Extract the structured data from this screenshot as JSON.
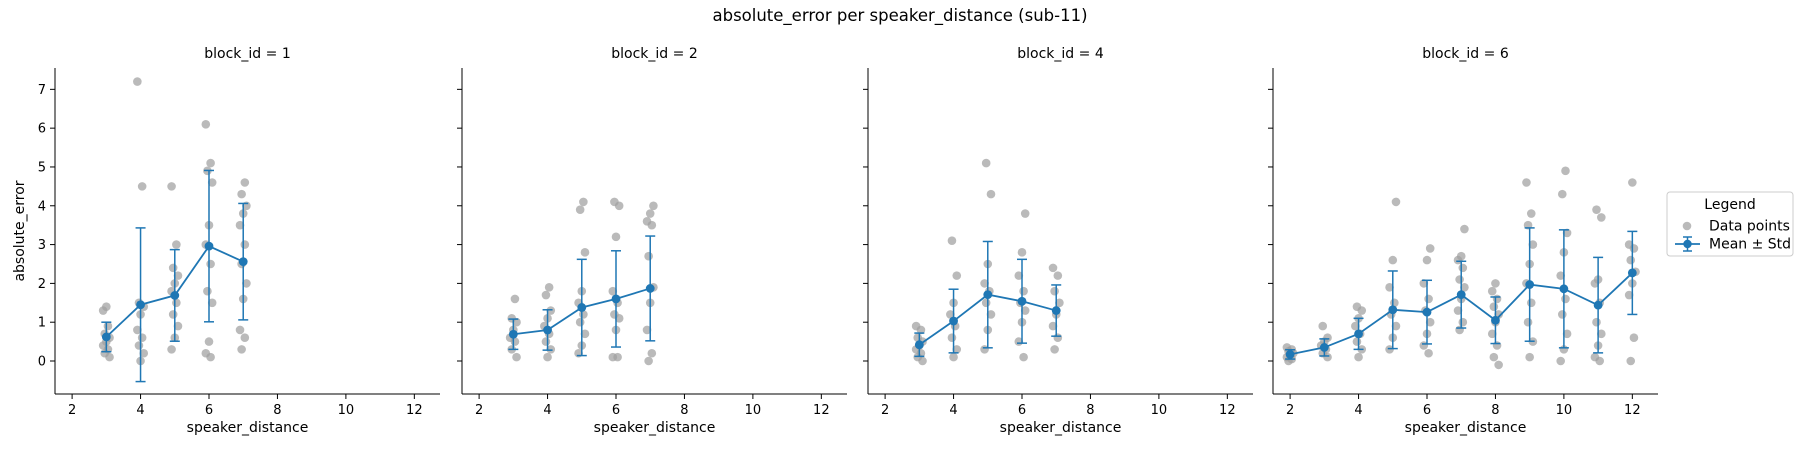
{
  "chart_data": {
    "type": "scatter",
    "title": "absolute_error per speaker_distance (sub-11)",
    "xlabel": "speaker_distance",
    "ylabel": "absolute_error",
    "xlim": [
      1.5,
      12.75
    ],
    "ylim": [
      -0.85,
      7.55
    ],
    "xticks": [
      2,
      4,
      6,
      8,
      10,
      12
    ],
    "yticks": [
      0,
      1,
      2,
      3,
      4,
      5,
      6,
      7
    ],
    "colors": {
      "points": "#a0a0a0",
      "mean": "#1f77b4"
    },
    "legend": {
      "title": "Legend",
      "entries": [
        "Data points",
        "Mean ± Std"
      ],
      "placement": "outside-right"
    },
    "panels": [
      {
        "title": "block_id = 1",
        "points": {
          "3": [
            0.1,
            0.2,
            0.3,
            0.4,
            0.5,
            0.6,
            0.7,
            0.9,
            1.3,
            1.4
          ],
          "4": [
            0.0,
            0.2,
            0.4,
            0.6,
            0.8,
            1.2,
            1.4,
            1.5,
            4.5,
            7.2
          ],
          "5": [
            0.3,
            0.6,
            0.9,
            1.2,
            1.5,
            1.8,
            2.0,
            2.2,
            2.4,
            3.0,
            4.5
          ],
          "6": [
            0.1,
            0.2,
            0.5,
            1.5,
            1.8,
            2.5,
            3.0,
            3.5,
            4.6,
            4.9,
            5.1,
            6.1
          ],
          "7": [
            0.3,
            0.6,
            0.8,
            1.6,
            2.0,
            2.5,
            3.0,
            3.5,
            3.8,
            4.0,
            4.3,
            4.6
          ]
        },
        "mean": [
          {
            "x": 3,
            "mean": 0.62,
            "std": 0.38
          },
          {
            "x": 4,
            "mean": 1.45,
            "std": 1.98
          },
          {
            "x": 5,
            "mean": 1.69,
            "std": 1.18
          },
          {
            "x": 6,
            "mean": 2.96,
            "std": 1.95
          },
          {
            "x": 7,
            "mean": 2.56,
            "std": 1.5
          }
        ]
      },
      {
        "title": "block_id = 2",
        "points": {
          "3": [
            0.1,
            0.3,
            0.5,
            0.6,
            0.8,
            1.0,
            1.1,
            1.6
          ],
          "4": [
            0.1,
            0.3,
            0.5,
            0.7,
            0.9,
            1.1,
            1.3,
            1.7,
            1.9
          ],
          "5": [
            0.2,
            0.4,
            0.7,
            1.0,
            1.2,
            1.5,
            1.8,
            2.8,
            3.9,
            4.1
          ],
          "6": [
            0.1,
            0.1,
            0.8,
            1.1,
            1.2,
            1.5,
            1.8,
            3.2,
            4.0,
            4.1
          ],
          "7": [
            0.0,
            0.2,
            0.8,
            1.5,
            1.9,
            2.7,
            3.5,
            3.6,
            3.8,
            4.0
          ]
        },
        "mean": [
          {
            "x": 3,
            "mean": 0.69,
            "std": 0.39
          },
          {
            "x": 4,
            "mean": 0.8,
            "std": 0.52
          },
          {
            "x": 5,
            "mean": 1.38,
            "std": 1.24
          },
          {
            "x": 6,
            "mean": 1.6,
            "std": 1.24
          },
          {
            "x": 7,
            "mean": 1.87,
            "std": 1.35
          }
        ]
      },
      {
        "title": "block_id = 4",
        "points": {
          "3": [
            0.0,
            0.1,
            0.2,
            0.3,
            0.4,
            0.5,
            0.6,
            0.8,
            0.9
          ],
          "4": [
            0.1,
            0.3,
            0.6,
            0.9,
            1.2,
            1.5,
            2.2,
            3.1
          ],
          "5": [
            0.3,
            0.8,
            1.2,
            1.5,
            1.8,
            2.0,
            2.5,
            4.3,
            5.1
          ],
          "6": [
            0.1,
            0.5,
            1.0,
            1.3,
            1.5,
            1.8,
            2.2,
            2.8,
            3.8
          ],
          "7": [
            0.3,
            0.6,
            0.9,
            1.2,
            1.5,
            1.8,
            2.2,
            2.4
          ]
        },
        "mean": [
          {
            "x": 3,
            "mean": 0.42,
            "std": 0.3
          },
          {
            "x": 4,
            "mean": 1.03,
            "std": 0.82
          },
          {
            "x": 5,
            "mean": 1.71,
            "std": 1.37
          },
          {
            "x": 6,
            "mean": 1.54,
            "std": 1.08
          },
          {
            "x": 7,
            "mean": 1.3,
            "std": 0.66
          }
        ]
      },
      {
        "title": "block_id = 6",
        "points": {
          "2": [
            0.0,
            0.05,
            0.1,
            0.15,
            0.2,
            0.25,
            0.3,
            0.35
          ],
          "3": [
            0.1,
            0.2,
            0.3,
            0.4,
            0.5,
            0.6,
            0.9
          ],
          "4": [
            0.1,
            0.3,
            0.5,
            0.7,
            0.9,
            1.1,
            1.3,
            1.4
          ],
          "5": [
            0.3,
            0.6,
            0.9,
            1.2,
            1.5,
            1.9,
            2.6,
            4.1
          ],
          "6": [
            0.2,
            0.4,
            0.7,
            1.0,
            1.3,
            1.6,
            2.0,
            2.6,
            2.9
          ],
          "7": [
            0.8,
            1.0,
            1.3,
            1.6,
            1.9,
            2.1,
            2.4,
            2.6,
            2.7,
            3.4
          ],
          "8": [
            -0.1,
            0.1,
            0.4,
            0.7,
            1.0,
            1.2,
            1.4,
            1.6,
            1.8,
            2.0
          ],
          "9": [
            0.1,
            0.5,
            1.0,
            1.5,
            2.0,
            2.5,
            3.0,
            3.5,
            3.8,
            4.6
          ],
          "10": [
            0.0,
            0.3,
            0.7,
            1.2,
            1.6,
            2.2,
            2.8,
            3.3,
            4.3,
            4.9
          ],
          "11": [
            0.0,
            0.1,
            0.4,
            0.7,
            1.0,
            1.5,
            2.0,
            2.1,
            3.7,
            3.9
          ],
          "12": [
            0.0,
            0.6,
            1.7,
            2.0,
            2.3,
            2.6,
            2.9,
            3.0,
            4.6
          ]
        },
        "mean": [
          {
            "x": 2,
            "mean": 0.17,
            "std": 0.12
          },
          {
            "x": 3,
            "mean": 0.35,
            "std": 0.22
          },
          {
            "x": 4,
            "mean": 0.7,
            "std": 0.4
          },
          {
            "x": 5,
            "mean": 1.32,
            "std": 1.0
          },
          {
            "x": 6,
            "mean": 1.26,
            "std": 0.82
          },
          {
            "x": 7,
            "mean": 1.71,
            "std": 0.86
          },
          {
            "x": 8,
            "mean": 1.05,
            "std": 0.6
          },
          {
            "x": 9,
            "mean": 1.97,
            "std": 1.46
          },
          {
            "x": 10,
            "mean": 1.86,
            "std": 1.52
          },
          {
            "x": 11,
            "mean": 1.44,
            "std": 1.23
          },
          {
            "x": 12,
            "mean": 2.27,
            "std": 1.07
          }
        ]
      }
    ]
  }
}
